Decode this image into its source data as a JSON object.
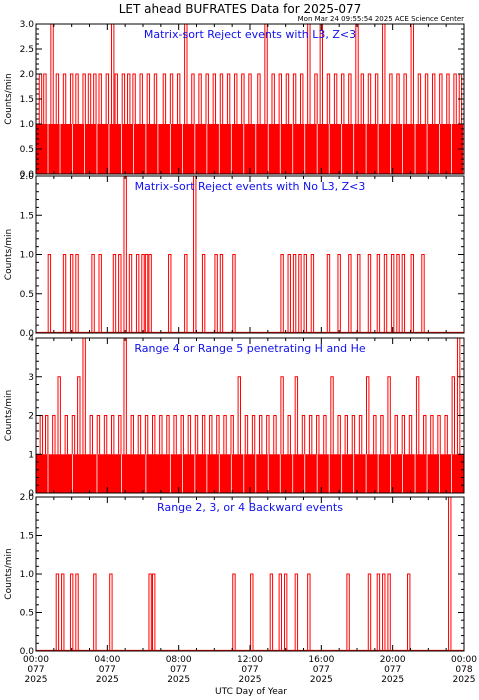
{
  "title": "LET ahead BUFRATES Data for 2025-077",
  "timestamp": "Mon Mar 24 09:55:54 2025 ACE Science Center",
  "x_axis_label": "UTC Day of Year",
  "chart_data": [
    {
      "type": "bar",
      "title": "Matrix-sort Reject events with L3, Z<3",
      "ylabel": "Counts/min",
      "ylim": [
        0,
        3
      ],
      "yticks": [
        "0.0",
        "0.5",
        "1.0",
        "1.5",
        "2.0",
        "2.5",
        "3.0"
      ],
      "base_value": 1,
      "gap_frac": 0.12,
      "spikes": [
        {
          "x": 0.25,
          "y": 2
        },
        {
          "x": 0.5,
          "y": 2
        },
        {
          "x": 0.9,
          "y": 3
        },
        {
          "x": 1.2,
          "y": 2
        },
        {
          "x": 1.6,
          "y": 2
        },
        {
          "x": 2.0,
          "y": 2
        },
        {
          "x": 2.3,
          "y": 2
        },
        {
          "x": 2.7,
          "y": 2
        },
        {
          "x": 3.0,
          "y": 2
        },
        {
          "x": 3.3,
          "y": 2
        },
        {
          "x": 3.6,
          "y": 2
        },
        {
          "x": 4.0,
          "y": 2
        },
        {
          "x": 4.3,
          "y": 3
        },
        {
          "x": 4.5,
          "y": 2
        },
        {
          "x": 4.9,
          "y": 2
        },
        {
          "x": 5.2,
          "y": 2
        },
        {
          "x": 5.5,
          "y": 2
        },
        {
          "x": 5.9,
          "y": 2
        },
        {
          "x": 6.3,
          "y": 2
        },
        {
          "x": 6.7,
          "y": 2
        },
        {
          "x": 7.2,
          "y": 2
        },
        {
          "x": 7.6,
          "y": 2
        },
        {
          "x": 8.0,
          "y": 2
        },
        {
          "x": 8.4,
          "y": 3
        },
        {
          "x": 8.8,
          "y": 2
        },
        {
          "x": 9.2,
          "y": 2
        },
        {
          "x": 9.6,
          "y": 2
        },
        {
          "x": 10.0,
          "y": 2
        },
        {
          "x": 10.4,
          "y": 2
        },
        {
          "x": 10.8,
          "y": 2
        },
        {
          "x": 11.2,
          "y": 2
        },
        {
          "x": 11.6,
          "y": 2
        },
        {
          "x": 12.0,
          "y": 2
        },
        {
          "x": 12.5,
          "y": 2
        },
        {
          "x": 12.9,
          "y": 3
        },
        {
          "x": 13.3,
          "y": 2
        },
        {
          "x": 13.7,
          "y": 2
        },
        {
          "x": 14.1,
          "y": 2
        },
        {
          "x": 14.5,
          "y": 2
        },
        {
          "x": 14.9,
          "y": 2
        },
        {
          "x": 15.3,
          "y": 3
        },
        {
          "x": 15.7,
          "y": 2
        },
        {
          "x": 16.0,
          "y": 3
        },
        {
          "x": 16.4,
          "y": 2
        },
        {
          "x": 16.8,
          "y": 2
        },
        {
          "x": 17.2,
          "y": 2
        },
        {
          "x": 17.6,
          "y": 2
        },
        {
          "x": 18.0,
          "y": 3
        },
        {
          "x": 18.3,
          "y": 2
        },
        {
          "x": 18.7,
          "y": 2
        },
        {
          "x": 19.1,
          "y": 2
        },
        {
          "x": 19.5,
          "y": 3
        },
        {
          "x": 19.9,
          "y": 2
        },
        {
          "x": 20.3,
          "y": 2
        },
        {
          "x": 20.7,
          "y": 2
        },
        {
          "x": 21.1,
          "y": 3
        },
        {
          "x": 21.5,
          "y": 2
        },
        {
          "x": 21.9,
          "y": 2
        },
        {
          "x": 22.3,
          "y": 2
        },
        {
          "x": 22.7,
          "y": 2
        },
        {
          "x": 23.1,
          "y": 2
        },
        {
          "x": 23.5,
          "y": 2
        },
        {
          "x": 23.8,
          "y": 2
        }
      ]
    },
    {
      "type": "bar",
      "title": "Matrix-sort Reject events with No L3, Z<3",
      "ylabel": "Counts/min",
      "ylim": [
        0,
        2
      ],
      "yticks": [
        "0.0",
        "0.5",
        "1.0",
        "1.5",
        "2.0"
      ],
      "base_value": 0,
      "gap_frac": 0,
      "spikes": [
        {
          "x": 0.75,
          "y": 1
        },
        {
          "x": 1.6,
          "y": 1
        },
        {
          "x": 2.0,
          "y": 1
        },
        {
          "x": 2.3,
          "y": 1
        },
        {
          "x": 3.2,
          "y": 1
        },
        {
          "x": 3.6,
          "y": 1
        },
        {
          "x": 4.4,
          "y": 1
        },
        {
          "x": 4.7,
          "y": 1
        },
        {
          "x": 5.0,
          "y": 2
        },
        {
          "x": 5.3,
          "y": 1
        },
        {
          "x": 5.7,
          "y": 1
        },
        {
          "x": 6.0,
          "y": 1
        },
        {
          "x": 6.2,
          "y": 1
        },
        {
          "x": 6.4,
          "y": 1
        },
        {
          "x": 7.5,
          "y": 1
        },
        {
          "x": 8.4,
          "y": 1
        },
        {
          "x": 8.9,
          "y": 2
        },
        {
          "x": 9.4,
          "y": 1
        },
        {
          "x": 10.1,
          "y": 1
        },
        {
          "x": 10.4,
          "y": 1
        },
        {
          "x": 11.1,
          "y": 1
        },
        {
          "x": 13.8,
          "y": 1
        },
        {
          "x": 14.2,
          "y": 1
        },
        {
          "x": 14.5,
          "y": 1
        },
        {
          "x": 14.8,
          "y": 1
        },
        {
          "x": 15.1,
          "y": 1
        },
        {
          "x": 15.5,
          "y": 1
        },
        {
          "x": 16.4,
          "y": 1
        },
        {
          "x": 17.0,
          "y": 1
        },
        {
          "x": 17.6,
          "y": 1
        },
        {
          "x": 18.1,
          "y": 1
        },
        {
          "x": 18.7,
          "y": 1
        },
        {
          "x": 19.2,
          "y": 1
        },
        {
          "x": 19.6,
          "y": 1
        },
        {
          "x": 20.0,
          "y": 1
        },
        {
          "x": 20.3,
          "y": 1
        },
        {
          "x": 20.6,
          "y": 1
        },
        {
          "x": 21.1,
          "y": 1
        },
        {
          "x": 21.7,
          "y": 1
        }
      ]
    },
    {
      "type": "bar",
      "title": "Range 4 or Range 5 penetrating H and He",
      "ylabel": "Counts/min",
      "ylim": [
        0,
        4
      ],
      "yticks": [
        "0",
        "1",
        "2",
        "3",
        "4"
      ],
      "base_value": 1,
      "gap_frac": 0.1,
      "spikes": [
        {
          "x": 0.3,
          "y": 2
        },
        {
          "x": 0.6,
          "y": 2
        },
        {
          "x": 1.0,
          "y": 2
        },
        {
          "x": 1.3,
          "y": 3
        },
        {
          "x": 1.7,
          "y": 2
        },
        {
          "x": 2.1,
          "y": 2
        },
        {
          "x": 2.4,
          "y": 3
        },
        {
          "x": 2.7,
          "y": 4
        },
        {
          "x": 3.1,
          "y": 2
        },
        {
          "x": 3.5,
          "y": 2
        },
        {
          "x": 3.9,
          "y": 2
        },
        {
          "x": 4.3,
          "y": 2
        },
        {
          "x": 4.7,
          "y": 2
        },
        {
          "x": 5.0,
          "y": 4
        },
        {
          "x": 5.4,
          "y": 2
        },
        {
          "x": 5.8,
          "y": 2
        },
        {
          "x": 6.2,
          "y": 2
        },
        {
          "x": 6.6,
          "y": 2
        },
        {
          "x": 7.0,
          "y": 2
        },
        {
          "x": 7.4,
          "y": 2
        },
        {
          "x": 7.8,
          "y": 2
        },
        {
          "x": 8.2,
          "y": 2
        },
        {
          "x": 8.6,
          "y": 2
        },
        {
          "x": 9.0,
          "y": 2
        },
        {
          "x": 9.4,
          "y": 2
        },
        {
          "x": 9.8,
          "y": 2
        },
        {
          "x": 10.2,
          "y": 2
        },
        {
          "x": 10.6,
          "y": 2
        },
        {
          "x": 11.0,
          "y": 2
        },
        {
          "x": 11.4,
          "y": 3
        },
        {
          "x": 11.8,
          "y": 2
        },
        {
          "x": 12.2,
          "y": 2
        },
        {
          "x": 12.6,
          "y": 2
        },
        {
          "x": 13.0,
          "y": 2
        },
        {
          "x": 13.4,
          "y": 2
        },
        {
          "x": 13.8,
          "y": 3
        },
        {
          "x": 14.2,
          "y": 2
        },
        {
          "x": 14.6,
          "y": 3
        },
        {
          "x": 15.0,
          "y": 2
        },
        {
          "x": 15.4,
          "y": 2
        },
        {
          "x": 15.8,
          "y": 2
        },
        {
          "x": 16.2,
          "y": 2
        },
        {
          "x": 16.6,
          "y": 3
        },
        {
          "x": 17.0,
          "y": 2
        },
        {
          "x": 17.4,
          "y": 2
        },
        {
          "x": 17.8,
          "y": 2
        },
        {
          "x": 18.2,
          "y": 2
        },
        {
          "x": 18.6,
          "y": 3
        },
        {
          "x": 19.0,
          "y": 2
        },
        {
          "x": 19.4,
          "y": 2
        },
        {
          "x": 19.8,
          "y": 3
        },
        {
          "x": 20.2,
          "y": 2
        },
        {
          "x": 20.6,
          "y": 2
        },
        {
          "x": 21.0,
          "y": 2
        },
        {
          "x": 21.4,
          "y": 3
        },
        {
          "x": 21.8,
          "y": 2
        },
        {
          "x": 22.2,
          "y": 2
        },
        {
          "x": 22.6,
          "y": 2
        },
        {
          "x": 23.0,
          "y": 2
        },
        {
          "x": 23.4,
          "y": 3
        },
        {
          "x": 23.7,
          "y": 4
        }
      ]
    },
    {
      "type": "bar",
      "title": "Range 2, 3, or 4 Backward events",
      "ylabel": "Counts/min",
      "ylim": [
        0,
        2
      ],
      "yticks": [
        "0.0",
        "0.5",
        "1.0",
        "1.5",
        "2.0"
      ],
      "base_value": 0,
      "gap_frac": 0,
      "spikes": [
        {
          "x": 1.2,
          "y": 1
        },
        {
          "x": 1.5,
          "y": 1
        },
        {
          "x": 2.0,
          "y": 1
        },
        {
          "x": 2.3,
          "y": 1
        },
        {
          "x": 3.3,
          "y": 1
        },
        {
          "x": 4.2,
          "y": 1
        },
        {
          "x": 6.4,
          "y": 1
        },
        {
          "x": 6.6,
          "y": 1
        },
        {
          "x": 11.1,
          "y": 1
        },
        {
          "x": 12.1,
          "y": 1
        },
        {
          "x": 13.2,
          "y": 1
        },
        {
          "x": 13.7,
          "y": 1
        },
        {
          "x": 14.0,
          "y": 1
        },
        {
          "x": 14.6,
          "y": 1
        },
        {
          "x": 15.3,
          "y": 1
        },
        {
          "x": 17.5,
          "y": 1
        },
        {
          "x": 18.7,
          "y": 1
        },
        {
          "x": 19.2,
          "y": 1
        },
        {
          "x": 19.5,
          "y": 1
        },
        {
          "x": 19.8,
          "y": 1
        },
        {
          "x": 20.9,
          "y": 1
        },
        {
          "x": 23.2,
          "y": 2
        }
      ]
    }
  ],
  "x_axis": {
    "xlim": [
      0,
      24
    ],
    "major_ticks": [
      0,
      4,
      8,
      12,
      16,
      20,
      24
    ],
    "tick_labels": [
      {
        "time": "00:00",
        "doy": "077",
        "year": "2025"
      },
      {
        "time": "04:00",
        "doy": "077",
        "year": "2025"
      },
      {
        "time": "08:00",
        "doy": "077",
        "year": "2025"
      },
      {
        "time": "12:00",
        "doy": "077",
        "year": "2025"
      },
      {
        "time": "16:00",
        "doy": "077",
        "year": "2025"
      },
      {
        "time": "20:00",
        "doy": "077",
        "year": "2025"
      },
      {
        "time": "00:00",
        "doy": "078",
        "year": "2025"
      }
    ]
  },
  "colors": {
    "data": "#ff0000",
    "panel_title": "#1010ee",
    "axis": "#000000"
  }
}
